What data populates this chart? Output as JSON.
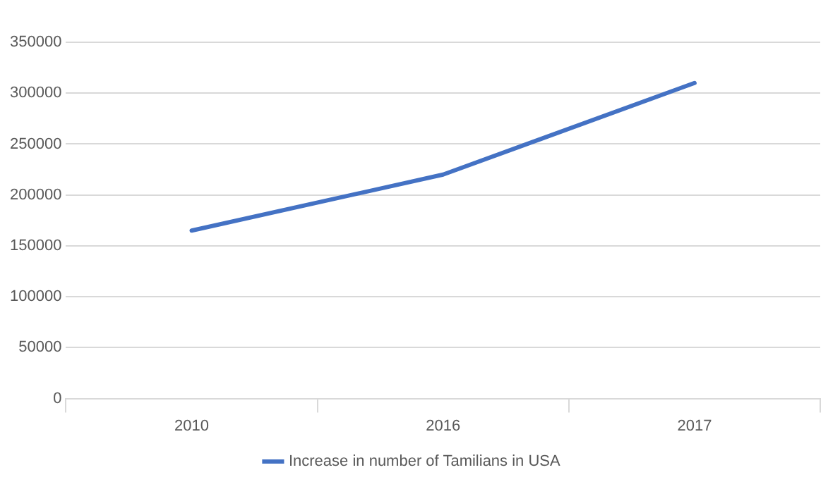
{
  "chart_data": {
    "type": "line",
    "categories": [
      "2010",
      "2016",
      "2017"
    ],
    "series": [
      {
        "name": "Increase in number of Tamilians in USA",
        "color": "#4472c4",
        "values": [
          165000,
          220000,
          310000
        ]
      }
    ],
    "ylim": [
      0,
      350000
    ],
    "yticks": [
      0,
      50000,
      100000,
      150000,
      200000,
      250000,
      300000,
      350000
    ],
    "grid": "y",
    "legend": "bottom",
    "marker": "none",
    "line_style": "solid"
  }
}
